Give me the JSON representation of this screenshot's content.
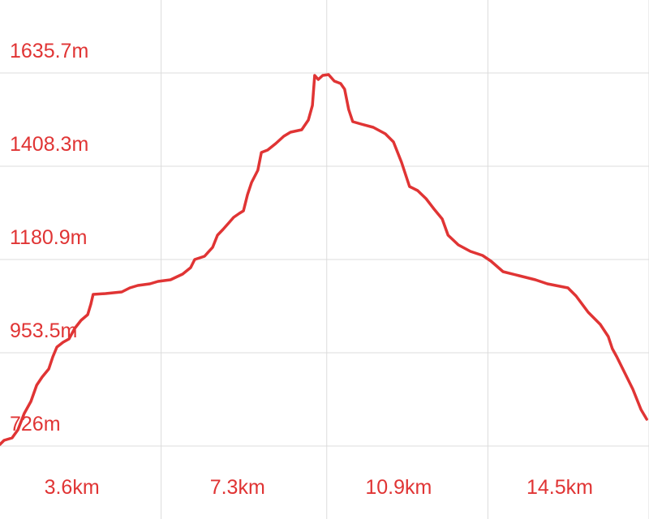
{
  "chart_data": {
    "type": "line",
    "x": [
      0,
      0.09,
      0.27,
      0.4,
      0.54,
      0.69,
      0.82,
      0.94,
      1.09,
      1.18,
      1.27,
      1.41,
      1.54,
      1.67,
      1.81,
      1.96,
      2.03,
      2.08,
      2.36,
      2.72,
      2.9,
      3.08,
      3.35,
      3.53,
      3.81,
      4.08,
      4.26,
      4.35,
      4.57,
      4.75,
      4.86,
      4.98,
      5.11,
      5.22,
      5.35,
      5.44,
      5.53,
      5.62,
      5.76,
      5.84,
      5.98,
      6.16,
      6.34,
      6.49,
      6.74,
      6.89,
      6.98,
      7.03,
      7.11,
      7.21,
      7.34,
      7.47,
      7.61,
      7.7,
      7.79,
      7.88,
      8.07,
      8.34,
      8.61,
      8.79,
      8.97,
      9.15,
      9.33,
      9.52,
      9.7,
      9.88,
      10.01,
      10.24,
      10.51,
      10.78,
      10.97,
      11.24,
      11.6,
      11.96,
      12.23,
      12.69,
      12.87,
      13.14,
      13.41,
      13.59,
      13.68,
      13.78,
      13.96,
      14.14,
      14.32,
      14.45
    ],
    "series": [
      {
        "color": "#e03434",
        "values": [
          730.0,
          739.9,
          745.8,
          765.6,
          805.1,
          834.8,
          874.3,
          894.1,
          913.9,
          943.6,
          967.3,
          979.2,
          987.1,
          1012.8,
          1032.5,
          1046.4,
          1072.1,
          1095.8,
          1097.8,
          1101.8,
          1111.7,
          1117.6,
          1121.5,
          1127.5,
          1131.4,
          1145.3,
          1161.1,
          1180.9,
          1188.8,
          1210.5,
          1240.2,
          1254.0,
          1269.9,
          1283.7,
          1293.6,
          1299.5,
          1339.1,
          1368.7,
          1398.4,
          1441.9,
          1447.8,
          1463.7,
          1481.5,
          1491.4,
          1497.3,
          1521.0,
          1556.6,
          1629.8,
          1619.9,
          1629.8,
          1631.8,
          1615.9,
          1610.0,
          1596.2,
          1546.7,
          1517.1,
          1511.1,
          1503.2,
          1487.4,
          1467.6,
          1418.2,
          1358.9,
          1349.0,
          1329.2,
          1303.5,
          1279.7,
          1240.2,
          1216.5,
          1200.6,
          1190.8,
          1176.9,
          1151.2,
          1141.3,
          1131.4,
          1121.5,
          1111.7,
          1091.9,
          1052.3,
          1022.7,
          993.0,
          963.3,
          943.6,
          904.0,
          864.5,
          815.0,
          791.3
        ]
      }
    ],
    "xlim": [
      0,
      14.5
    ],
    "ylim": [
      548,
      1813.7
    ],
    "xticks": [
      {
        "value": 3.6,
        "label": "3.6km"
      },
      {
        "value": 7.3,
        "label": "7.3km"
      },
      {
        "value": 10.9,
        "label": "10.9km"
      },
      {
        "value": 14.5,
        "label": "14.5km"
      }
    ],
    "yticks": [
      {
        "value": 726,
        "label": "726m"
      },
      {
        "value": 953.5,
        "label": "953.5m"
      },
      {
        "value": 1180.9,
        "label": "1180.9m"
      },
      {
        "value": 1408.3,
        "label": "1408.3m"
      },
      {
        "value": 1635.7,
        "label": "1635.7m"
      }
    ],
    "grid": true
  }
}
